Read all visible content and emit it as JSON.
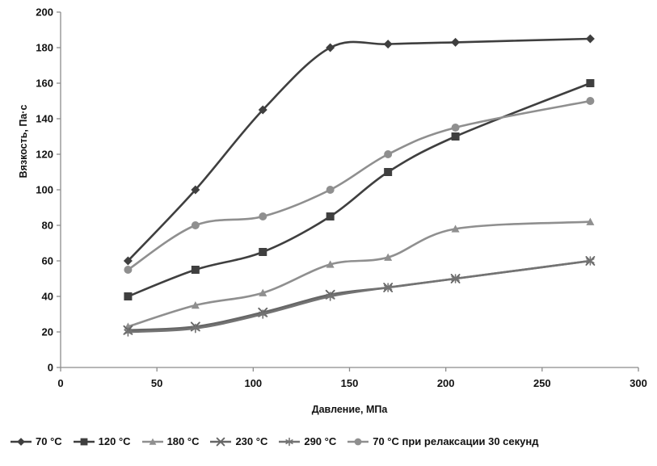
{
  "chart_data": {
    "type": "line",
    "x": [
      35,
      70,
      105,
      140,
      170,
      205,
      275
    ],
    "xlabel": "Давление, МПа",
    "ylabel": "Вязкость, Па·с",
    "xlim": [
      0,
      300
    ],
    "ylim": [
      0,
      200
    ],
    "xticks": [
      0,
      50,
      100,
      150,
      200,
      250,
      300
    ],
    "yticks": [
      0,
      20,
      40,
      60,
      80,
      100,
      120,
      140,
      160,
      180,
      200
    ],
    "grid": false,
    "legend_position": "bottom",
    "axis_color": "#8c8c8c",
    "series": [
      {
        "name": "70 °C",
        "marker": "diamond",
        "color": "#3f3f3f",
        "values": [
          60,
          100,
          145,
          180,
          182,
          183,
          185
        ]
      },
      {
        "name": "120 °C",
        "marker": "square",
        "color": "#3f3f3f",
        "values": [
          40,
          55,
          65,
          85,
          110,
          130,
          160
        ]
      },
      {
        "name": "180 °C",
        "marker": "triangle",
        "color": "#8f8f8f",
        "values": [
          23,
          35,
          42,
          58,
          62,
          78,
          82
        ]
      },
      {
        "name": "230 °C",
        "marker": "x",
        "color": "#666666",
        "values": [
          21,
          23,
          31,
          41,
          45,
          50,
          60
        ]
      },
      {
        "name": "290 °C",
        "marker": "asterisk",
        "color": "#737373",
        "values": [
          20,
          22,
          30,
          40,
          45,
          50,
          60
        ]
      },
      {
        "name": "70 °C при релаксации 30 секунд",
        "marker": "circle",
        "color": "#8f8f8f",
        "values": [
          55,
          80,
          85,
          100,
          120,
          135,
          150
        ]
      }
    ]
  }
}
